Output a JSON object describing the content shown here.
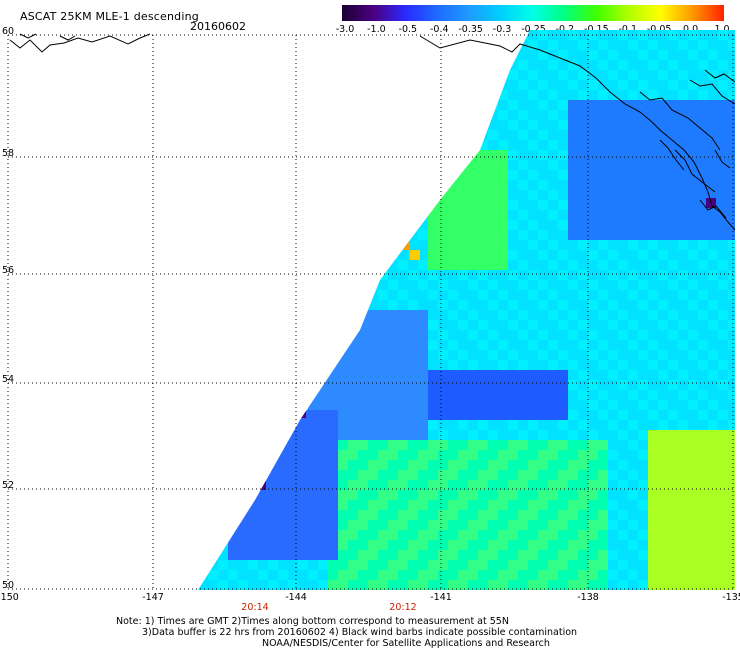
{
  "header": {
    "title": "ASCAT 25KM MLE-1 descending",
    "date": "20160602"
  },
  "colorbar": {
    "labels": [
      "-3.0",
      "-1.0",
      "-0.5",
      "-0.4",
      "-0.35",
      "-0.3",
      "-0.25",
      "-0.2",
      "-0.15",
      "-0.1",
      "-0.05",
      "0.0",
      "1.0"
    ],
    "colors": [
      "#1a0033",
      "#4b0082",
      "#2a2aff",
      "#1e6bff",
      "#1e9bff",
      "#00d0ff",
      "#00ffe6",
      "#00ff80",
      "#40ff00",
      "#b0ff00",
      "#ffff00",
      "#ff9900",
      "#ff2200"
    ]
  },
  "axes": {
    "lat_labels": [
      "60",
      "58",
      "56",
      "54",
      "52",
      "50"
    ],
    "lon_labels": [
      "-150",
      "-147",
      "-144",
      "-141",
      "-138",
      "-135"
    ]
  },
  "time_labels": [
    "20:14",
    "20:12"
  ],
  "notes": {
    "line1": "Note: 1) Times are GMT 2)Times along bottom correspond to measurement at 55N",
    "line2": "3)Data buffer is 22 hrs from 20160602 4) Black wind barbs indicate possible contamination",
    "line3": "NOAA/NESDIS/Center for Satellite Applications and Research"
  }
}
